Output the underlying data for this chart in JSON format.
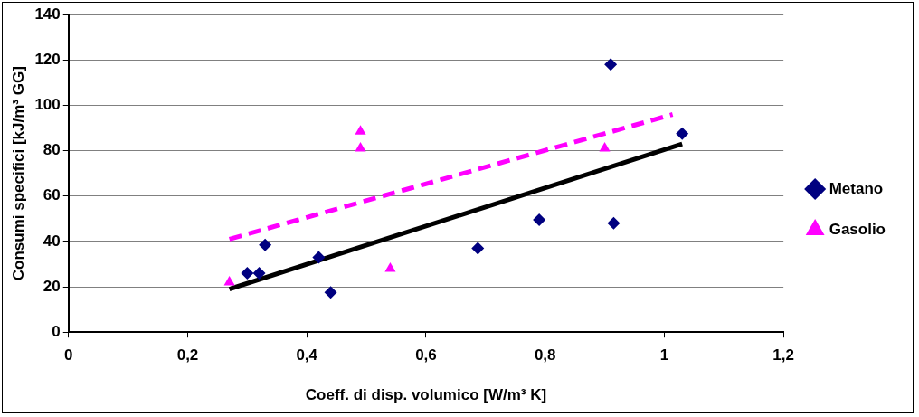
{
  "chart_data": {
    "type": "scatter",
    "xlabel": "Coeff. di disp. volumico [W/m³ K]",
    "ylabel": "Consumi specifici [kJ/m³ GG]",
    "series": [
      {
        "name": "Metano",
        "color": "#000080",
        "marker": "diamond",
        "x": [
          0.3,
          0.32,
          0.33,
          0.42,
          0.44,
          0.687,
          0.79,
          0.91,
          0.915,
          1.03
        ],
        "values": [
          26,
          26,
          38.5,
          33,
          17.5,
          37,
          49.5,
          118,
          48,
          87.5
        ]
      },
      {
        "name": "Gasolio",
        "color": "#ff00ff",
        "marker": "triangle",
        "x": [
          0.27,
          0.49,
          0.49,
          0.54,
          0.9
        ],
        "values": [
          22,
          88.5,
          81,
          28,
          81
        ]
      },
      {
        "type": "line",
        "color": "#000000",
        "line_style": "solid",
        "marker": "none",
        "x": [
          0.27,
          1.03
        ],
        "values": [
          19,
          83
        ]
      },
      {
        "type": "line",
        "color": "#ff00ff",
        "line_style": "dashed",
        "marker": "none",
        "x": [
          0.27,
          1.014
        ],
        "values": [
          41,
          96
        ]
      }
    ],
    "xlim": [
      0,
      1.2
    ],
    "xticks": [
      0,
      {
        "value": 0.2,
        "label": "0,2"
      },
      {
        "value": 0.4,
        "label": "0,4"
      },
      {
        "value": 0.6,
        "label": "0,6"
      },
      {
        "value": 0.8,
        "label": "0,8"
      },
      1,
      {
        "value": 1.2,
        "label": "1,2"
      }
    ],
    "ylim": [
      0,
      140
    ],
    "yticks": [
      0,
      20,
      40,
      60,
      80,
      100,
      120,
      140
    ],
    "grid": "y",
    "legend": "right"
  }
}
